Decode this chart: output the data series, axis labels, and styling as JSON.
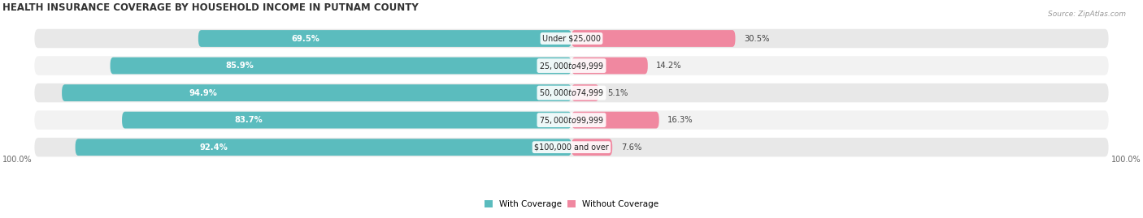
{
  "title": "HEALTH INSURANCE COVERAGE BY HOUSEHOLD INCOME IN PUTNAM COUNTY",
  "source": "Source: ZipAtlas.com",
  "categories": [
    "Under $25,000",
    "$25,000 to $49,999",
    "$50,000 to $74,999",
    "$75,000 to $99,999",
    "$100,000 and over"
  ],
  "with_coverage": [
    69.5,
    85.9,
    94.9,
    83.7,
    92.4
  ],
  "without_coverage": [
    30.5,
    14.2,
    5.1,
    16.3,
    7.6
  ],
  "color_with": "#5bbcbe",
  "color_without": "#f088a0",
  "row_bg_color": "#e8e8e8",
  "row_alt_bg_color": "#f2f2f2",
  "title_fontsize": 8.5,
  "label_fontsize": 7.2,
  "source_fontsize": 6.5,
  "tick_fontsize": 7,
  "legend_fontsize": 7.5,
  "left_axis_label": "100.0%",
  "right_axis_label": "100.0%"
}
